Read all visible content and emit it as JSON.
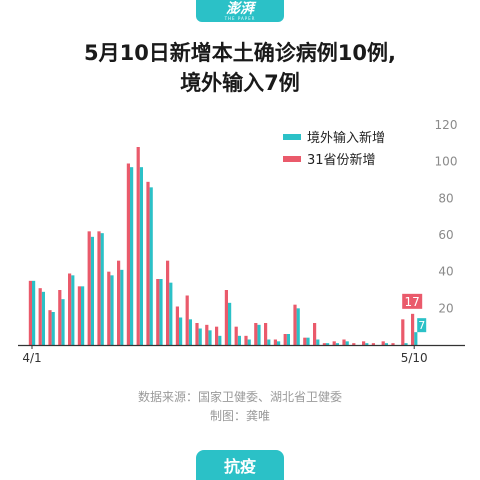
{
  "brand": {
    "logo_text": "澎湃",
    "logo_sub": "THE PAPER"
  },
  "title": {
    "line1": "5月10日新增本土确诊病例10例,",
    "line2": "境外输入7例"
  },
  "source": {
    "line1": "数据来源：国家卫健委、湖北省卫健委",
    "line2": "制图：龚唯"
  },
  "tag": "抗疫",
  "colors": {
    "imported": "#2bc1c7",
    "hubei": "#ea5a6b",
    "accent": "#2bc1c7",
    "label_box": "#ea5a6b"
  },
  "chart_data": {
    "type": "bar",
    "categories": [
      "4/1",
      "4/2",
      "4/3",
      "4/4",
      "4/5",
      "4/6",
      "4/7",
      "4/8",
      "4/9",
      "4/10",
      "4/11",
      "4/12",
      "4/13",
      "4/14",
      "4/15",
      "4/16",
      "4/17",
      "4/18",
      "4/19",
      "4/20",
      "4/21",
      "4/22",
      "4/23",
      "4/24",
      "4/25",
      "4/26",
      "4/27",
      "4/28",
      "4/29",
      "4/30",
      "5/1",
      "5/2",
      "5/3",
      "5/4",
      "5/5",
      "5/6",
      "5/7",
      "5/8",
      "5/9",
      "5/10"
    ],
    "x_tick_labels": [
      "4/1",
      "5/10"
    ],
    "series": [
      {
        "name": "境外输入新增",
        "values": [
          35,
          29,
          18,
          25,
          38,
          32,
          59,
          61,
          38,
          41,
          97,
          97,
          86,
          36,
          34,
          15,
          14,
          9,
          8,
          5,
          23,
          5,
          3,
          11,
          3,
          2,
          6,
          20,
          4,
          3,
          1,
          1,
          2,
          0,
          1,
          0,
          1,
          0,
          1,
          7
        ]
      },
      {
        "name": "31省份新增",
        "values": [
          35,
          31,
          19,
          30,
          39,
          32,
          62,
          62,
          40,
          46,
          99,
          108,
          89,
          36,
          46,
          21,
          27,
          12,
          11,
          10,
          30,
          10,
          5,
          12,
          12,
          3,
          6,
          22,
          4,
          12,
          1,
          2,
          3,
          1,
          2,
          1,
          2,
          1,
          14,
          17
        ]
      }
    ],
    "data_labels": {
      "series_0_last": "7",
      "series_1_last": "17"
    },
    "ylim": [
      0,
      120
    ],
    "yticks": [
      0,
      20,
      40,
      60,
      80,
      100,
      120
    ],
    "y_axis_side": "right",
    "legend": "top-right",
    "grid": false
  }
}
